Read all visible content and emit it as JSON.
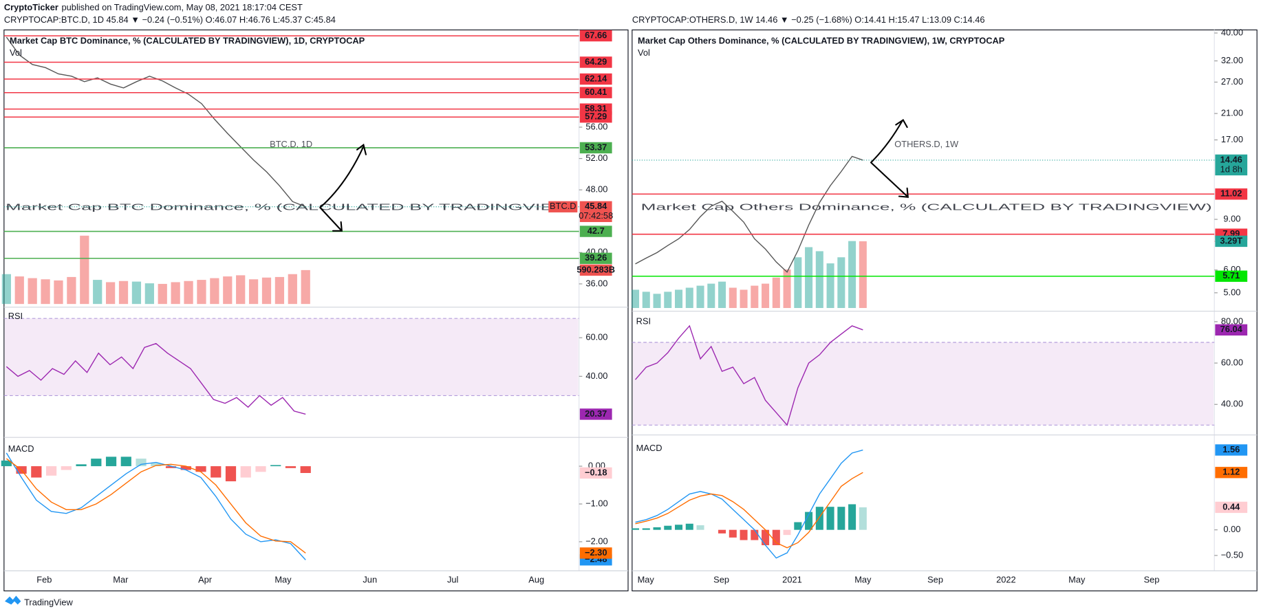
{
  "header": {
    "publisher": "CryptoTicker",
    "published": "published on TradingView.com, May 08, 2021 18:17:04 CEST"
  },
  "chart_data": [
    {
      "type": "line",
      "symbol_line": "CRYPTOCAP:BTC.D, 1D  45.84 ▼ −0.24 (−0.51%) O:46.07 H:46.76 L:45.37 C:45.84",
      "legend": "Market Cap BTC Dominance, % (CALCULATED BY TRADINGVIEW), 1D, CRYPTOCAP",
      "watermark": "BTC.D, 1D",
      "watermark_sub": "Market Cap BTC Dominance, % (CALCULATED BY TRADINGVIEW)",
      "time_labels": [
        "Feb",
        "Mar",
        "Apr",
        "May",
        "Jun",
        "Jul",
        "Aug"
      ],
      "colors": {
        "up": "#26a69a",
        "down": "#ef5350",
        "line": "#555555"
      },
      "price": {
        "ylim": [
          33.23,
          68.41
        ],
        "log": false,
        "yticks": [
          {
            "value": 56,
            "label": "56.00"
          },
          {
            "value": 52,
            "label": "52.00"
          },
          {
            "value": 48,
            "label": "48.00"
          },
          {
            "value": 40,
            "label": "40.00"
          },
          {
            "value": 36,
            "label": "36.00"
          }
        ],
        "values": [
          67.5,
          65.2,
          64.0,
          63.6,
          62.8,
          62.5,
          61.8,
          62.3,
          61.5,
          61.0,
          61.8,
          62.5,
          61.9,
          61.0,
          60.2,
          59.0,
          57.0,
          55.2,
          53.5,
          51.8,
          50.3,
          48.5,
          46.5,
          45.84
        ],
        "current": 45.84,
        "tag": "BTC.D",
        "countdown": "07:42:58",
        "levels": [
          {
            "value": 67.66,
            "color": "#f23645"
          },
          {
            "value": 64.29,
            "color": "#f23645"
          },
          {
            "value": 62.14,
            "color": "#f23645"
          },
          {
            "value": 60.41,
            "color": "#f23645"
          },
          {
            "value": 58.31,
            "color": "#f23645"
          },
          {
            "value": 57.29,
            "color": "#f23645"
          },
          {
            "value": 53.37,
            "color": "#4caf50"
          },
          {
            "value": 42.7,
            "color": "#4caf50"
          },
          {
            "value": 39.26,
            "color": "#4caf50"
          }
        ]
      },
      "volume": {
        "name": "Vol",
        "ylim": [
          0,
          1400
        ],
        "values": [
          520,
          480,
          450,
          430,
          410,
          470,
          1190,
          420,
          380,
          400,
          390,
          360,
          350,
          380,
          400,
          420,
          450,
          480,
          500,
          430,
          460,
          470,
          520,
          590.283
        ],
        "current": {
          "value": 590.283,
          "label": "590.283B"
        }
      },
      "rsi": {
        "name": "RSI",
        "ylim": [
          8.75,
          75
        ],
        "band": [
          30,
          70
        ],
        "color": "#9c27b0",
        "yticks": [
          {
            "value": 60,
            "label": "60.00"
          },
          {
            "value": 40,
            "label": "40.00"
          }
        ],
        "values": [
          45,
          40,
          43,
          38,
          44,
          41,
          48,
          42,
          52,
          46,
          50,
          44,
          55,
          57,
          52,
          48,
          44,
          36,
          28,
          26,
          29,
          24,
          30,
          25,
          29,
          22,
          20.37
        ],
        "current": 20.37
      },
      "macd": {
        "name": "MACD",
        "ylim": [
          -2.77,
          0.72
        ],
        "yticks": [
          {
            "value": 0,
            "label": "0.00"
          },
          {
            "value": -1,
            "label": "−1.00"
          },
          {
            "value": -2,
            "label": "−2.00"
          }
        ],
        "histogram": {
          "values": [
            0.15,
            -0.2,
            -0.3,
            -0.25,
            -0.1,
            0.05,
            0.2,
            0.25,
            0.25,
            0.2,
            0.08,
            -0.05,
            -0.1,
            -0.15,
            -0.3,
            -0.4,
            -0.3,
            -0.15,
            0.03,
            -0.05,
            -0.18
          ],
          "current": {
            "value": -0.18,
            "label": "−0.18"
          }
        },
        "series": [
          {
            "color": "#2196f3",
            "values": [
              0.35,
              -0.3,
              -0.9,
              -1.2,
              -1.25,
              -1.1,
              -0.8,
              -0.5,
              -0.2,
              0.05,
              0.1,
              0.0,
              -0.1,
              -0.3,
              -0.8,
              -1.4,
              -1.8,
              -2.0,
              -1.95,
              -2.05,
              -2.48
            ],
            "current": {
              "value": -2.48,
              "label": "−2.48"
            }
          },
          {
            "color": "#ff6d00",
            "values": [
              0.2,
              -0.1,
              -0.6,
              -0.95,
              -1.15,
              -1.15,
              -1.0,
              -0.75,
              -0.45,
              -0.15,
              0.02,
              0.05,
              0.0,
              -0.15,
              -0.5,
              -1.0,
              -1.5,
              -1.85,
              -1.98,
              -2.0,
              -2.3
            ],
            "current": {
              "value": -2.3,
              "label": "−2.30"
            }
          }
        ]
      }
    },
    {
      "type": "line",
      "symbol_line": "CRYPTOCAP:OTHERS.D, 1W  14.46 ▼ −0.25 (−1.68%) O:14.41 H:15.47 L:13.09 C:14.46",
      "legend": "Market Cap Others Dominance, % (CALCULATED BY TRADINGVIEW), 1W, CRYPTOCAP",
      "watermark": "OTHERS.D, 1W",
      "watermark_sub": "Market Cap Others Dominance, % (CALCULATED BY TRADINGVIEW)",
      "time_labels": [
        "May",
        "Sep",
        "2021",
        "May",
        "Sep",
        "2022",
        "May",
        "Sep"
      ],
      "colors": {
        "up": "#26a69a",
        "down": "#ef5350",
        "line": "#555555"
      },
      "price": {
        "ylim": [
          4.37,
          41.0
        ],
        "log": true,
        "yticks": [
          {
            "value": 40,
            "label": "40.00"
          },
          {
            "value": 32,
            "label": "32.00"
          },
          {
            "value": 27,
            "label": "27.00"
          },
          {
            "value": 21,
            "label": "21.00"
          },
          {
            "value": 17,
            "label": "17.00"
          },
          {
            "value": 9,
            "label": "9.00"
          },
          {
            "value": 6,
            "label": "6.00"
          },
          {
            "value": 5,
            "label": "5.00"
          }
        ],
        "values": [
          6.3,
          6.6,
          6.9,
          7.3,
          7.7,
          8.3,
          9.2,
          10.0,
          10.4,
          9.6,
          8.8,
          7.7,
          7.1,
          6.4,
          5.9,
          7.0,
          8.6,
          10.3,
          11.8,
          13.2,
          14.9,
          14.46
        ],
        "current": 14.46,
        "countdown": "1d 8h",
        "levels": [
          {
            "value": 11.02,
            "color": "#f23645"
          },
          {
            "value": 7.99,
            "color": "#f23645"
          },
          {
            "value": 5.71,
            "color": "#00e600"
          }
        ]
      },
      "volume": {
        "name": "Vol",
        "ylim": [
          0,
          4.2
        ],
        "values": [
          0.9,
          0.8,
          0.7,
          0.8,
          0.9,
          1.0,
          1.1,
          1.2,
          1.3,
          1.0,
          0.9,
          1.1,
          1.2,
          1.5,
          1.9,
          2.5,
          3.0,
          2.8,
          2.2,
          2.5,
          3.3,
          3.29
        ],
        "current": {
          "value": 3.29,
          "label": "3.29T"
        }
      },
      "rsi": {
        "name": "RSI",
        "ylim": [
          25.6,
          83.9
        ],
        "band": [
          30,
          70
        ],
        "color": "#9c27b0",
        "yticks": [
          {
            "value": 80,
            "label": "80.00"
          },
          {
            "value": 60,
            "label": "60.00"
          },
          {
            "value": 40,
            "label": "40.00"
          }
        ],
        "values": [
          52,
          58,
          60,
          65,
          72,
          78,
          62,
          68,
          56,
          58,
          50,
          53,
          42,
          36,
          30,
          48,
          60,
          64,
          70,
          74,
          78,
          76.04
        ],
        "current": 76.04
      },
      "macd": {
        "name": "MACD",
        "ylim": [
          -0.8,
          1.79
        ],
        "yticks": [
          {
            "value": 0,
            "label": "0.00"
          },
          {
            "value": -0.5,
            "label": "−0.50"
          }
        ],
        "histogram": {
          "values": [
            0.03,
            0.03,
            0.05,
            0.08,
            0.1,
            0.12,
            0.09,
            0.0,
            -0.07,
            -0.15,
            -0.2,
            -0.2,
            -0.3,
            -0.3,
            -0.1,
            0.15,
            0.35,
            0.45,
            0.45,
            0.45,
            0.5,
            0.44
          ],
          "current": 0.44
        },
        "series": [
          {
            "color": "#2196f3",
            "values": [
              0.15,
              0.2,
              0.28,
              0.4,
              0.55,
              0.7,
              0.75,
              0.7,
              0.6,
              0.4,
              0.2,
              0.0,
              -0.3,
              -0.55,
              -0.45,
              -0.1,
              0.3,
              0.7,
              1.0,
              1.3,
              1.5,
              1.56
            ],
            "current": 1.56
          },
          {
            "color": "#ff6d00",
            "values": [
              0.12,
              0.17,
              0.23,
              0.32,
              0.45,
              0.58,
              0.66,
              0.7,
              0.67,
              0.55,
              0.4,
              0.2,
              0.0,
              -0.25,
              -0.35,
              -0.25,
              -0.05,
              0.25,
              0.55,
              0.85,
              1.0,
              1.12
            ],
            "current": 1.12
          }
        ]
      }
    }
  ],
  "footer": "TradingView"
}
